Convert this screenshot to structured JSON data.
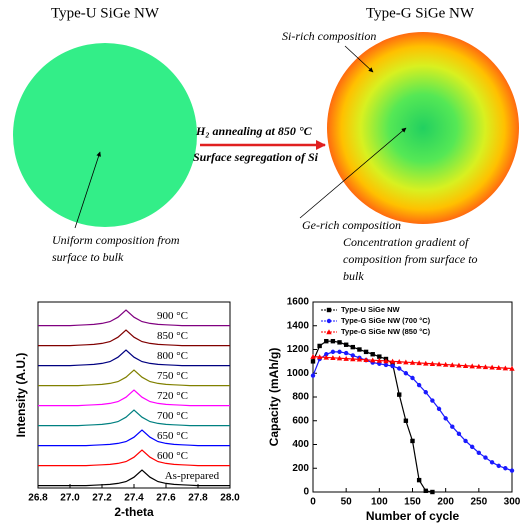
{
  "diagram": {
    "left_title": "Type-U SiGe NW",
    "right_title": "Type-G SiGe NW",
    "si_rich": "Si-rich composition",
    "annealing": "H₂ annealing at 850 °C",
    "segregation": "Surface segregation of Si",
    "ge_rich": "Ge-rich composition",
    "uniform_note": [
      "Uniform composition from",
      "surface to bulk"
    ],
    "gradient_note": [
      "Concentration gradient of",
      "composition from surface to",
      "bulk"
    ]
  },
  "chart_data": [
    {
      "type": "line",
      "legend": "inline",
      "xlabel": "2-theta",
      "ylabel": "Intensity (A.U.)",
      "x": [
        26.8,
        26.85,
        26.9,
        26.95,
        27.0,
        27.05,
        27.1,
        27.15,
        27.2,
        27.25,
        27.3,
        27.35,
        27.4,
        27.45,
        27.5,
        27.55,
        27.6,
        27.65,
        27.7,
        27.75,
        27.8,
        27.85,
        27.9,
        27.95,
        28.0
      ],
      "xlim": [
        26.8,
        28.0
      ],
      "xticks": [
        26.8,
        {
          "value": 27.0,
          "label": "27.0"
        },
        27.2,
        27.4,
        27.6,
        27.8,
        {
          "value": 28.0,
          "label": "28.0"
        }
      ],
      "ylim": [
        0,
        9.3
      ],
      "series": [
        {
          "name": "As-prepared",
          "color": "#000000",
          "values": [
            0.12,
            0.12,
            0.12,
            0.12,
            0.12,
            0.12,
            0.12,
            0.14,
            0.16,
            0.18,
            0.23,
            0.32,
            0.54,
            0.9,
            0.54,
            0.32,
            0.23,
            0.18,
            0.16,
            0.14,
            0.12,
            0.12,
            0.12,
            0.12,
            0.12
          ]
        },
        {
          "name": "600 °C",
          "color": "#ff0000",
          "values": [
            1.12,
            1.12,
            1.12,
            1.12,
            1.12,
            1.12,
            1.12,
            1.14,
            1.16,
            1.18,
            1.23,
            1.32,
            1.54,
            1.9,
            1.54,
            1.32,
            1.23,
            1.18,
            1.16,
            1.14,
            1.12,
            1.12,
            1.12,
            1.12,
            1.12
          ]
        },
        {
          "name": "650 °C",
          "color": "#0000ff",
          "values": [
            2.12,
            2.12,
            2.12,
            2.12,
            2.12,
            2.12,
            2.12,
            2.14,
            2.16,
            2.18,
            2.23,
            2.32,
            2.54,
            2.9,
            2.54,
            2.32,
            2.23,
            2.18,
            2.16,
            2.14,
            2.12,
            2.12,
            2.12,
            2.12,
            2.12
          ]
        },
        {
          "name": "700 °C",
          "color": "#008080",
          "values": [
            3.12,
            3.12,
            3.12,
            3.12,
            3.12,
            3.12,
            3.14,
            3.16,
            3.18,
            3.23,
            3.32,
            3.54,
            3.9,
            3.54,
            3.32,
            3.23,
            3.18,
            3.16,
            3.14,
            3.12,
            3.12,
            3.12,
            3.12,
            3.12,
            3.12
          ]
        },
        {
          "name": "720 °C",
          "color": "#ff00ff",
          "values": [
            4.12,
            4.12,
            4.12,
            4.12,
            4.12,
            4.12,
            4.14,
            4.16,
            4.18,
            4.23,
            4.32,
            4.54,
            4.9,
            4.54,
            4.32,
            4.23,
            4.18,
            4.16,
            4.14,
            4.12,
            4.12,
            4.12,
            4.12,
            4.12,
            4.12
          ]
        },
        {
          "name": "750 °C",
          "color": "#808000",
          "values": [
            5.12,
            5.12,
            5.12,
            5.12,
            5.12,
            5.12,
            5.14,
            5.16,
            5.18,
            5.23,
            5.32,
            5.54,
            5.9,
            5.54,
            5.32,
            5.23,
            5.18,
            5.16,
            5.14,
            5.12,
            5.12,
            5.12,
            5.12,
            5.12,
            5.12
          ]
        },
        {
          "name": "800 °C",
          "color": "#000080",
          "values": [
            6.12,
            6.12,
            6.12,
            6.12,
            6.12,
            6.14,
            6.16,
            6.18,
            6.23,
            6.32,
            6.54,
            6.9,
            6.54,
            6.32,
            6.23,
            6.18,
            6.16,
            6.14,
            6.12,
            6.12,
            6.12,
            6.12,
            6.12,
            6.12,
            6.12
          ]
        },
        {
          "name": "850 °C",
          "color": "#800000",
          "values": [
            7.12,
            7.12,
            7.12,
            7.12,
            7.12,
            7.14,
            7.16,
            7.18,
            7.23,
            7.32,
            7.54,
            7.9,
            7.54,
            7.32,
            7.23,
            7.18,
            7.16,
            7.14,
            7.12,
            7.12,
            7.12,
            7.12,
            7.12,
            7.12,
            7.12
          ]
        },
        {
          "name": "900 °C",
          "color": "#800080",
          "values": [
            8.12,
            8.12,
            8.12,
            8.12,
            8.12,
            8.14,
            8.16,
            8.18,
            8.23,
            8.32,
            8.54,
            8.9,
            8.54,
            8.32,
            8.23,
            8.18,
            8.16,
            8.14,
            8.12,
            8.12,
            8.12,
            8.12,
            8.12,
            8.12,
            8.12
          ]
        }
      ]
    },
    {
      "type": "line",
      "legend": "upper left",
      "xlabel": "Number of cycle",
      "ylabel": "Capacity (mAh/g)",
      "x": [
        0,
        10,
        20,
        30,
        40,
        50,
        60,
        70,
        80,
        90,
        100,
        110,
        120,
        130,
        140,
        150,
        160,
        170,
        180,
        190,
        200,
        210,
        220,
        230,
        240,
        250,
        260,
        270,
        280,
        290,
        300
      ],
      "xlim": [
        0,
        300
      ],
      "xticks": [
        0,
        50,
        100,
        150,
        200,
        250,
        300
      ],
      "ylim": [
        0,
        1600
      ],
      "yticks": [
        0,
        200,
        400,
        600,
        800,
        1000,
        1200,
        1400,
        1600
      ],
      "series": [
        {
          "name": "Type-U SiGe NW",
          "color": "#000000",
          "marker": "square",
          "values": [
            1100,
            1230,
            1270,
            1270,
            1260,
            1240,
            1220,
            1200,
            1180,
            1160,
            1140,
            1120,
            1080,
            820,
            600,
            430,
            100,
            10,
            0,
            null,
            null,
            null,
            null,
            null,
            null,
            null,
            null,
            null,
            null,
            null,
            null
          ]
        },
        {
          "name": "Type-G SiGe NW (700 °C)",
          "color": "#1a1aff",
          "marker": "circle",
          "values": [
            980,
            1120,
            1160,
            1180,
            1180,
            1170,
            1150,
            1130,
            1110,
            1090,
            1080,
            1070,
            1060,
            1040,
            1000,
            960,
            900,
            840,
            770,
            700,
            620,
            550,
            490,
            430,
            380,
            330,
            290,
            250,
            220,
            200,
            180
          ]
        },
        {
          "name": "Type-G SiGe NW (850 °C)",
          "color": "#ff0000",
          "marker": "triangle",
          "values": [
            1140,
            1137,
            1133,
            1130,
            1127,
            1123,
            1120,
            1117,
            1113,
            1110,
            1107,
            1103,
            1100,
            1097,
            1093,
            1090,
            1087,
            1083,
            1080,
            1077,
            1073,
            1070,
            1067,
            1063,
            1060,
            1057,
            1053,
            1050,
            1047,
            1043,
            1040
          ]
        }
      ]
    }
  ]
}
